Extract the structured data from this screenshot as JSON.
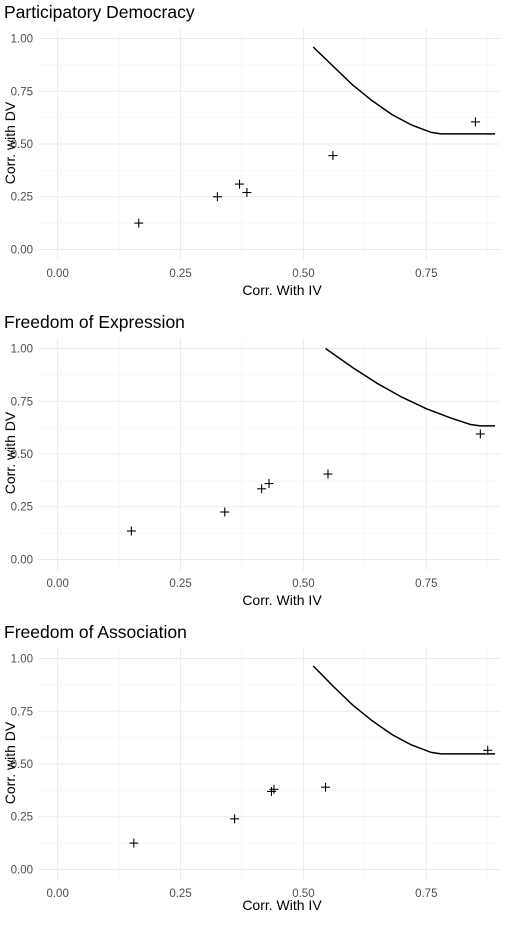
{
  "chart_data": [
    {
      "type": "scatter",
      "title": "Participatory Democracy",
      "xlabel": "Corr. With IV",
      "ylabel": "Corr. with DV",
      "xlim": [
        -0.04,
        0.9
      ],
      "ylim": [
        -0.05,
        1.05
      ],
      "x_ticks": [
        "0.00",
        "0.25",
        "0.50",
        "0.75"
      ],
      "y_ticks": [
        "0.00",
        "0.25",
        "0.50",
        "0.75",
        "1.00"
      ],
      "points": [
        {
          "x": 0.165,
          "y": 0.125
        },
        {
          "x": 0.325,
          "y": 0.25
        },
        {
          "x": 0.37,
          "y": 0.31
        },
        {
          "x": 0.385,
          "y": 0.27
        },
        {
          "x": 0.56,
          "y": 0.445
        },
        {
          "x": 0.85,
          "y": 0.605
        }
      ],
      "curve": [
        [
          0.52,
          0.96
        ],
        [
          0.56,
          0.87
        ],
        [
          0.6,
          0.78
        ],
        [
          0.64,
          0.705
        ],
        [
          0.68,
          0.64
        ],
        [
          0.72,
          0.59
        ],
        [
          0.76,
          0.555
        ],
        [
          0.78,
          0.548
        ],
        [
          0.89,
          0.548
        ]
      ]
    },
    {
      "type": "scatter",
      "title": "Freedom of Expression",
      "xlabel": "Corr. With IV",
      "ylabel": "Corr. with DV",
      "xlim": [
        -0.04,
        0.9
      ],
      "ylim": [
        -0.05,
        1.05
      ],
      "x_ticks": [
        "0.00",
        "0.25",
        "0.50",
        "0.75"
      ],
      "y_ticks": [
        "0.00",
        "0.25",
        "0.50",
        "0.75",
        "1.00"
      ],
      "points": [
        {
          "x": 0.15,
          "y": 0.135
        },
        {
          "x": 0.34,
          "y": 0.225
        },
        {
          "x": 0.415,
          "y": 0.335
        },
        {
          "x": 0.43,
          "y": 0.36
        },
        {
          "x": 0.55,
          "y": 0.405
        },
        {
          "x": 0.86,
          "y": 0.595
        }
      ],
      "curve": [
        [
          0.545,
          1.0
        ],
        [
          0.6,
          0.91
        ],
        [
          0.65,
          0.835
        ],
        [
          0.7,
          0.77
        ],
        [
          0.75,
          0.715
        ],
        [
          0.8,
          0.67
        ],
        [
          0.84,
          0.64
        ],
        [
          0.86,
          0.633
        ],
        [
          0.89,
          0.633
        ]
      ]
    },
    {
      "type": "scatter",
      "title": "Freedom of Association",
      "xlabel": "Corr. With IV",
      "ylabel": "Corr. with DV",
      "xlim": [
        -0.04,
        0.9
      ],
      "ylim": [
        -0.05,
        1.05
      ],
      "x_ticks": [
        "0.00",
        "0.25",
        "0.50",
        "0.75"
      ],
      "y_ticks": [
        "0.00",
        "0.25",
        "0.50",
        "0.75",
        "1.00"
      ],
      "points": [
        {
          "x": 0.155,
          "y": 0.125
        },
        {
          "x": 0.36,
          "y": 0.24
        },
        {
          "x": 0.435,
          "y": 0.37
        },
        {
          "x": 0.44,
          "y": 0.38
        },
        {
          "x": 0.545,
          "y": 0.39
        },
        {
          "x": 0.875,
          "y": 0.565
        }
      ],
      "curve": [
        [
          0.52,
          0.965
        ],
        [
          0.56,
          0.87
        ],
        [
          0.6,
          0.78
        ],
        [
          0.64,
          0.705
        ],
        [
          0.68,
          0.64
        ],
        [
          0.72,
          0.59
        ],
        [
          0.76,
          0.555
        ],
        [
          0.78,
          0.548
        ],
        [
          0.89,
          0.548
        ]
      ]
    }
  ]
}
